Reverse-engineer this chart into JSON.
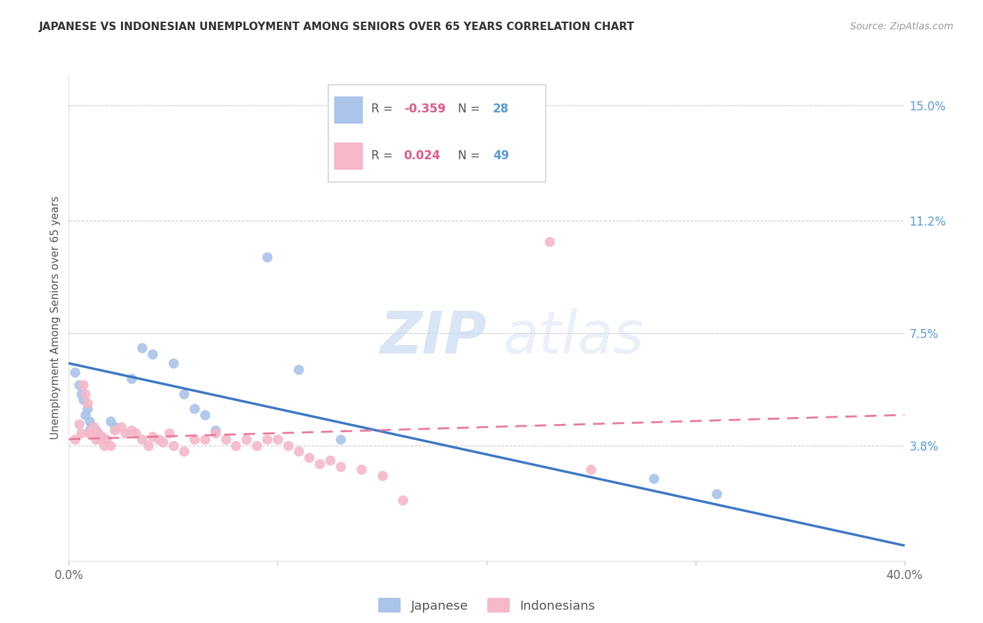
{
  "title": "JAPANESE VS INDONESIAN UNEMPLOYMENT AMONG SENIORS OVER 65 YEARS CORRELATION CHART",
  "source": "Source: ZipAtlas.com",
  "ylabel": "Unemployment Among Seniors over 65 years",
  "xlim": [
    0.0,
    0.4
  ],
  "ylim": [
    0.0,
    0.16
  ],
  "xticks": [
    0.0,
    0.4
  ],
  "xticklabels": [
    "0.0%",
    "40.0%"
  ],
  "ytick_positions": [
    0.038,
    0.075,
    0.112,
    0.15
  ],
  "ytick_labels": [
    "3.8%",
    "7.5%",
    "11.2%",
    "15.0%"
  ],
  "background_color": "#ffffff",
  "japanese_color": "#aac4ea",
  "indonesian_color": "#f5b8c8",
  "japanese_line_color": "#3b78c4",
  "indonesian_line_color": "#e87a9a",
  "legend_R_japanese": "-0.359",
  "legend_N_japanese": "28",
  "legend_R_indonesian": "0.024",
  "legend_N_indonesian": "49",
  "japanese_points_x": [
    0.003,
    0.005,
    0.006,
    0.007,
    0.008,
    0.009,
    0.01,
    0.01,
    0.011,
    0.012,
    0.013,
    0.014,
    0.015,
    0.02,
    0.022,
    0.03,
    0.035,
    0.04,
    0.05,
    0.055,
    0.06,
    0.065,
    0.07,
    0.095,
    0.11,
    0.13,
    0.28,
    0.31
  ],
  "japanese_points_y": [
    0.062,
    0.058,
    0.055,
    0.053,
    0.048,
    0.05,
    0.046,
    0.043,
    0.044,
    0.043,
    0.043,
    0.042,
    0.041,
    0.046,
    0.044,
    0.06,
    0.07,
    0.068,
    0.065,
    0.055,
    0.05,
    0.048,
    0.043,
    0.1,
    0.063,
    0.04,
    0.027,
    0.022
  ],
  "indonesian_points_x": [
    0.003,
    0.005,
    0.006,
    0.007,
    0.008,
    0.009,
    0.01,
    0.011,
    0.012,
    0.013,
    0.014,
    0.015,
    0.016,
    0.017,
    0.018,
    0.02,
    0.022,
    0.025,
    0.027,
    0.03,
    0.032,
    0.035,
    0.038,
    0.04,
    0.043,
    0.045,
    0.048,
    0.05,
    0.055,
    0.06,
    0.065,
    0.07,
    0.075,
    0.08,
    0.085,
    0.09,
    0.095,
    0.1,
    0.105,
    0.11,
    0.115,
    0.12,
    0.125,
    0.13,
    0.14,
    0.15,
    0.16,
    0.23,
    0.25
  ],
  "indonesian_points_y": [
    0.04,
    0.045,
    0.042,
    0.058,
    0.055,
    0.052,
    0.042,
    0.043,
    0.044,
    0.04,
    0.042,
    0.04,
    0.041,
    0.038,
    0.04,
    0.038,
    0.043,
    0.044,
    0.042,
    0.043,
    0.042,
    0.04,
    0.038,
    0.041,
    0.04,
    0.039,
    0.042,
    0.038,
    0.036,
    0.04,
    0.04,
    0.042,
    0.04,
    0.038,
    0.04,
    0.038,
    0.04,
    0.04,
    0.038,
    0.036,
    0.034,
    0.032,
    0.033,
    0.031,
    0.03,
    0.028,
    0.02,
    0.105,
    0.03
  ],
  "japanese_trend_x": [
    0.0,
    0.4
  ],
  "japanese_trend_y": [
    0.065,
    0.005
  ],
  "indonesian_trend_x": [
    0.0,
    0.4
  ],
  "indonesian_trend_y": [
    0.04,
    0.048
  ]
}
